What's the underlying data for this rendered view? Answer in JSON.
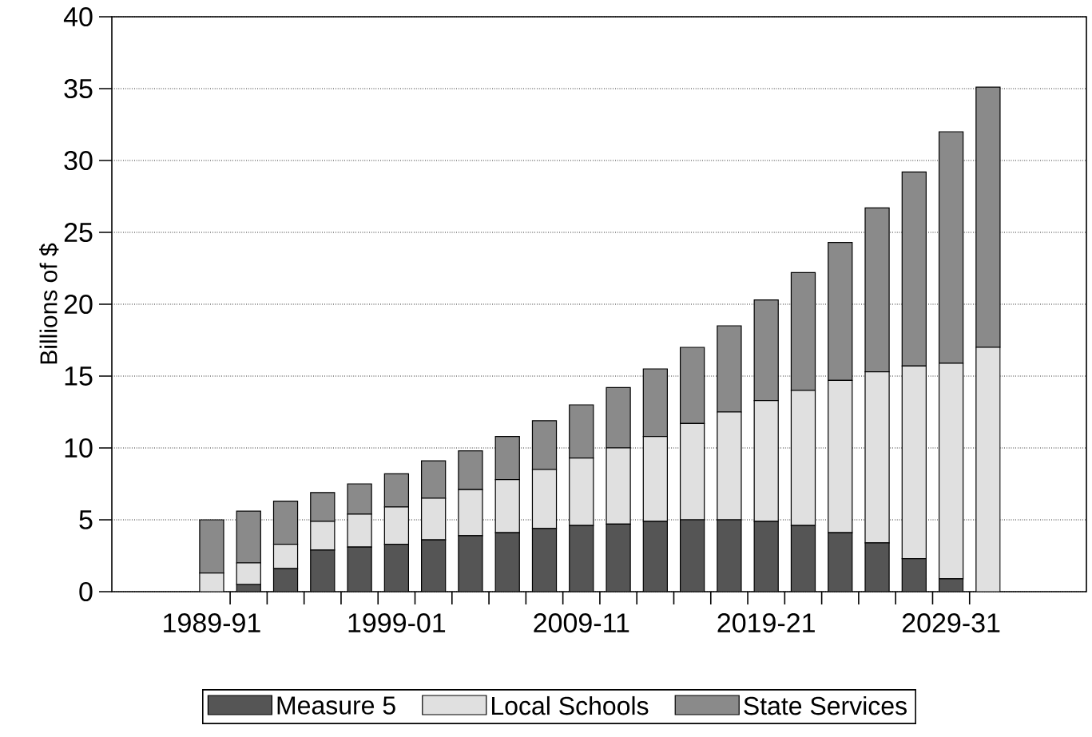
{
  "chart_data": {
    "type": "bar",
    "stacked": true,
    "ylabel": "Billions of $",
    "categories": [
      "1989-91",
      null,
      null,
      null,
      null,
      "1999-01",
      null,
      null,
      null,
      null,
      "2009-11",
      null,
      null,
      null,
      null,
      "2019-21",
      null,
      null,
      null,
      null,
      "2029-31",
      null
    ],
    "series": [
      {
        "name": "Measure 5",
        "color": "#555555",
        "values": [
          0,
          0.5,
          1.6,
          2.9,
          3.1,
          3.3,
          3.6,
          3.9,
          4.1,
          4.4,
          4.6,
          4.7,
          4.9,
          5.0,
          5.0,
          4.9,
          4.6,
          4.1,
          3.4,
          2.3,
          0.9,
          0
        ]
      },
      {
        "name": "Local Schools",
        "color": "#e0e0e0",
        "values": [
          1.3,
          1.5,
          1.7,
          2.0,
          2.3,
          2.6,
          2.9,
          3.2,
          3.7,
          4.1,
          4.7,
          5.3,
          5.9,
          6.7,
          7.5,
          8.4,
          9.4,
          10.6,
          11.9,
          13.4,
          15.0,
          17.0
        ]
      },
      {
        "name": "State Services",
        "color": "#8a8a8a",
        "values": [
          3.7,
          3.6,
          3.0,
          2.0,
          2.1,
          2.3,
          2.6,
          2.7,
          3.0,
          3.4,
          3.7,
          4.2,
          4.7,
          5.3,
          6.0,
          7.0,
          8.2,
          9.6,
          11.4,
          13.5,
          16.1,
          18.1
        ]
      }
    ],
    "ylim": [
      0,
      40
    ],
    "yticks": [
      0,
      5,
      10,
      15,
      20,
      25,
      30,
      35,
      40
    ],
    "grid": "y",
    "legend": "bottom"
  }
}
